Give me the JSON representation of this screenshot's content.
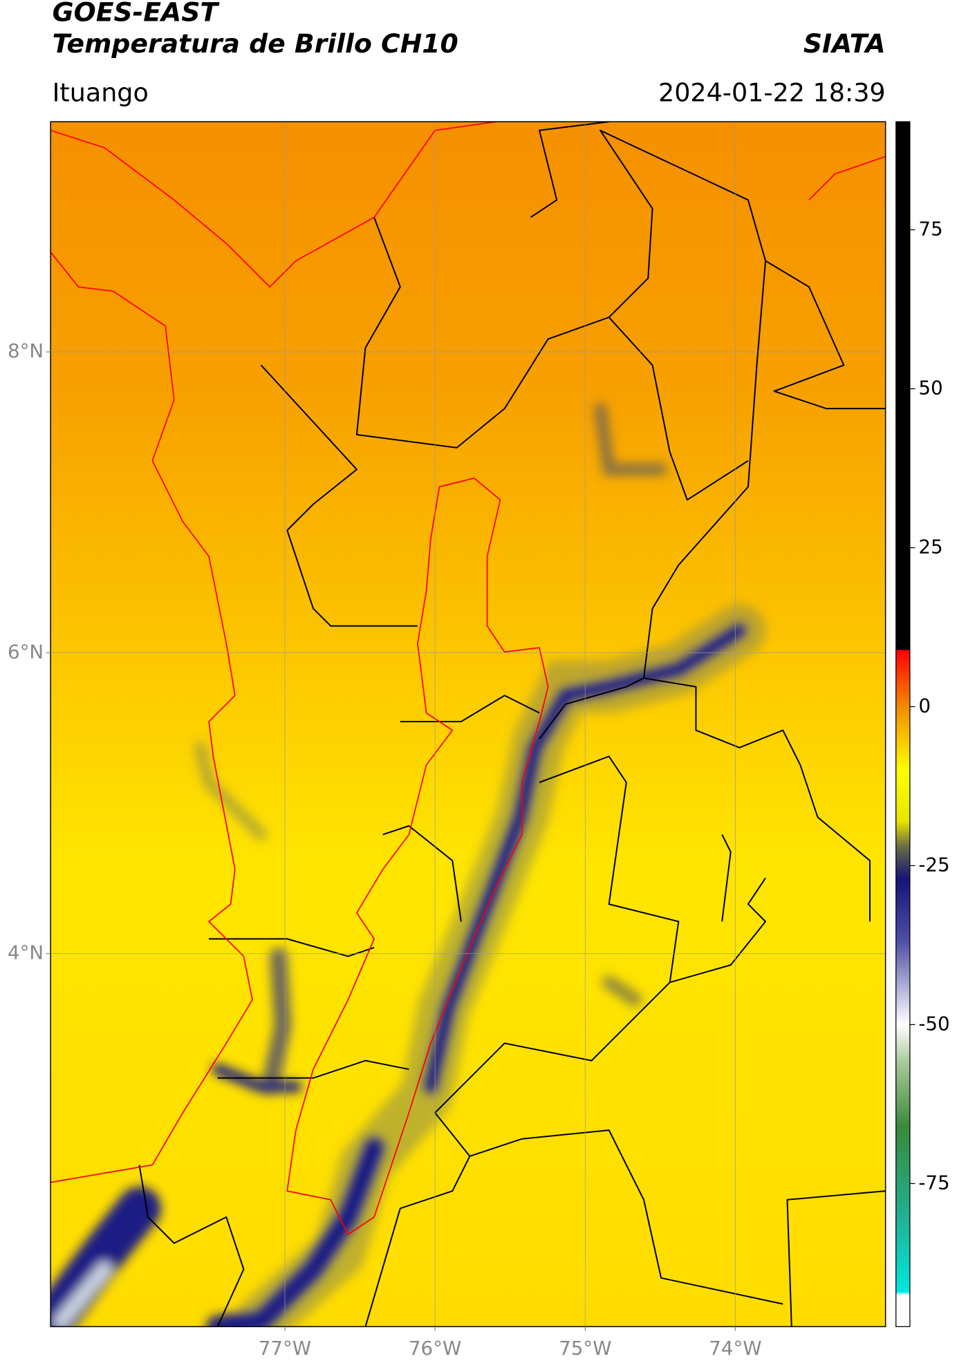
{
  "header": {
    "title": "GOES-EAST",
    "subtitle": "Temperatura de Brillo CH10",
    "brand": "SIATA",
    "region": "Ituango",
    "timestamp": "2024-01-22 18:39"
  },
  "map": {
    "xlim": [
      -78.56,
      -73.0
    ],
    "ylim": [
      1.52,
      9.53
    ],
    "xticks": [
      {
        "value": -77,
        "label": "77°W"
      },
      {
        "value": -76,
        "label": "76°W"
      },
      {
        "value": -75,
        "label": "75°W"
      },
      {
        "value": -74,
        "label": "74°W"
      }
    ],
    "yticks": [
      {
        "value": 8,
        "label": "8°N"
      },
      {
        "value": 6,
        "label": "6°N"
      },
      {
        "value": 4,
        "label": "4°N"
      }
    ],
    "grid": true
  },
  "colorbar": {
    "lim": [
      -97.5,
      92
    ],
    "ticks": [
      75,
      50,
      25,
      0,
      -25,
      -50,
      -75
    ],
    "stops": [
      {
        "value": 92,
        "color": "#000000"
      },
      {
        "value": 9,
        "color": "#000000"
      },
      {
        "value": 8.9,
        "color": "#ff0000"
      },
      {
        "value": 0,
        "color": "#f28c00"
      },
      {
        "value": -10,
        "color": "#ffff00"
      },
      {
        "value": -18,
        "color": "#e6e600"
      },
      {
        "value": -22,
        "color": "#6a6a45"
      },
      {
        "value": -27,
        "color": "#14147a"
      },
      {
        "value": -37,
        "color": "#5050a8"
      },
      {
        "value": -47,
        "color": "#d8d8ee"
      },
      {
        "value": -50,
        "color": "#ffffff"
      },
      {
        "value": -56,
        "color": "#a8c898"
      },
      {
        "value": -66,
        "color": "#3a8a3a"
      },
      {
        "value": -80,
        "color": "#20b090"
      },
      {
        "value": -92,
        "color": "#00e8e0"
      },
      {
        "value": -92.5,
        "color": "#ffffff"
      },
      {
        "value": -97.5,
        "color": "#ffffff"
      }
    ]
  }
}
